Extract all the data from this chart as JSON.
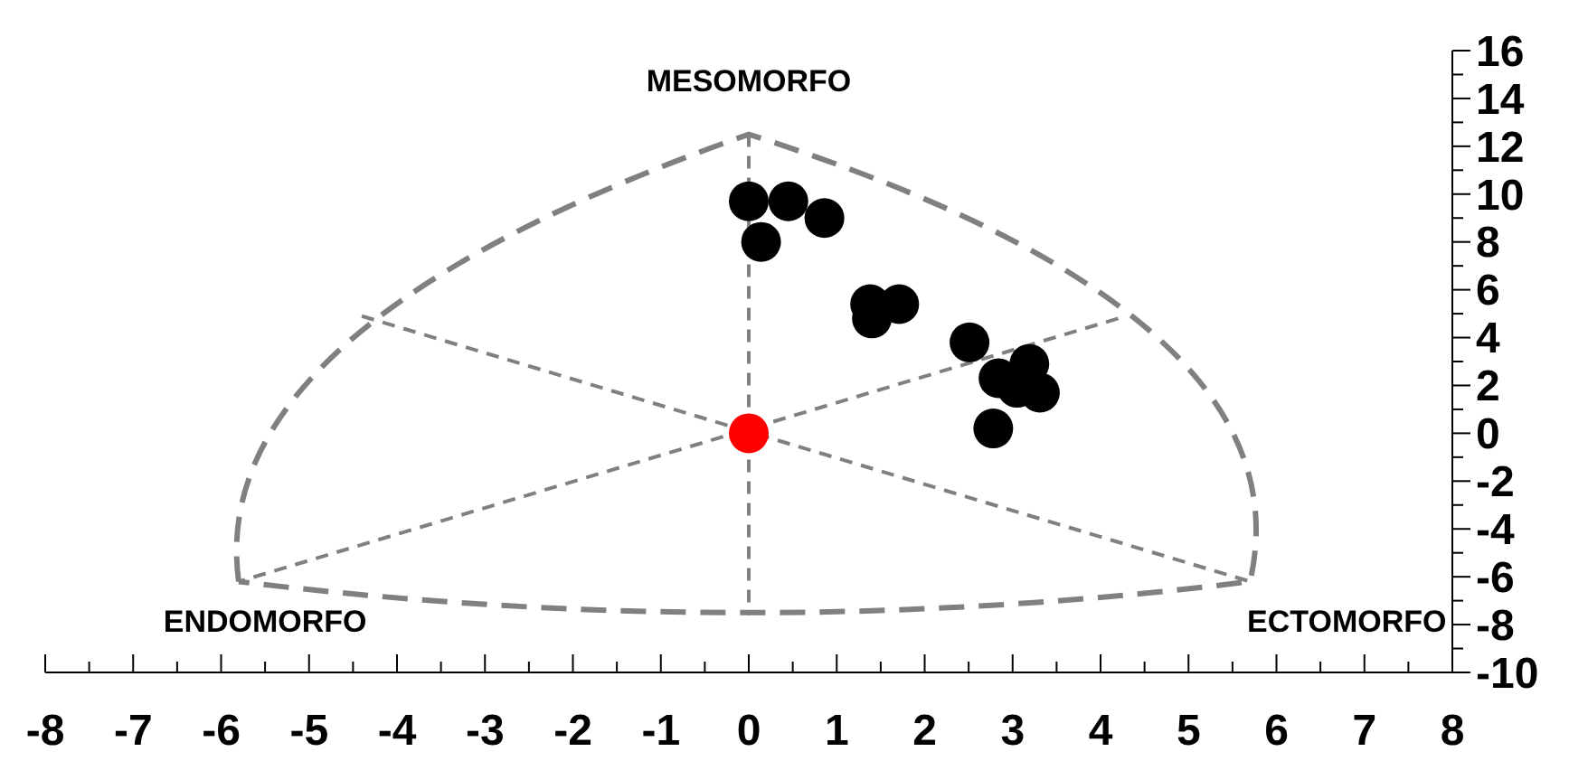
{
  "chart_data": {
    "type": "scatter",
    "annotations": [
      "MESOMORFO",
      "ENDOMORFO",
      "ECTOMORFO"
    ],
    "series": [
      {
        "color": "#000000",
        "x": [
          0,
          0.45,
          0.86,
          0.14,
          1.38,
          1.4,
          1.71,
          2.51,
          2.84,
          3.19,
          3.05,
          3.31,
          2.78
        ],
        "values": [
          9.7,
          9.7,
          9.0,
          8.0,
          5.4,
          4.8,
          5.4,
          3.8,
          2.3,
          2.9,
          1.9,
          1.7,
          0.2
        ]
      },
      {
        "color": "#ff0000",
        "x": [
          0
        ],
        "values": [
          0
        ]
      }
    ],
    "xlim": [
      -8,
      8
    ],
    "xticks": [
      -8,
      -7,
      -6,
      -5,
      -4,
      -3,
      -2,
      -1,
      0,
      1,
      2,
      3,
      4,
      5,
      6,
      7,
      8
    ],
    "ylim": [
      -10,
      16
    ],
    "yticks": [
      -10,
      -8,
      -6,
      -4,
      -2,
      0,
      2,
      4,
      6,
      8,
      10,
      12,
      14,
      16
    ],
    "marker": "circle"
  }
}
